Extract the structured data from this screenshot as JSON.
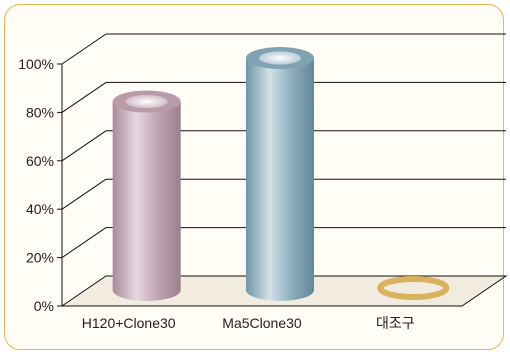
{
  "chart_data": {
    "type": "bar",
    "categories": [
      "H120+Clone30",
      "Ma5Clone30",
      "대조구"
    ],
    "values": [
      82,
      100,
      0
    ],
    "ylim": [
      0,
      100
    ],
    "yticks": [
      "0%",
      "20%",
      "40%",
      "60%",
      "80%",
      "100%"
    ],
    "grid": true,
    "legend": "none",
    "colors": [
      "#b89aa8",
      "#7fa3b3",
      "#d9b25f"
    ],
    "floor_color": "#f1ecdf"
  }
}
